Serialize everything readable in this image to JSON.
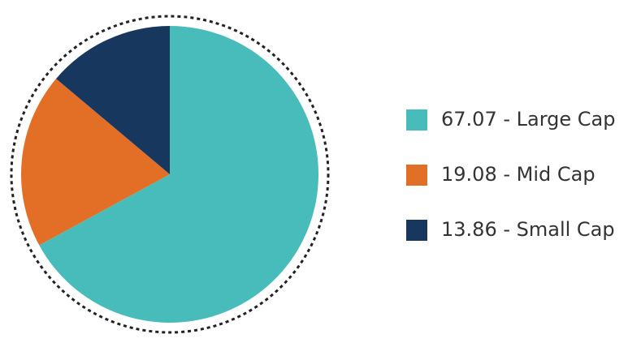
{
  "chart_data": {
    "type": "pie",
    "categories": [
      "67.07 - Large Cap",
      "19.08 - Mid Cap",
      "13.86 - Small Cap"
    ],
    "values": [
      67.07,
      19.08,
      13.86
    ],
    "colors": [
      "#48bcbb",
      "#e36f27",
      "#18375e"
    ],
    "legend": "right"
  }
}
